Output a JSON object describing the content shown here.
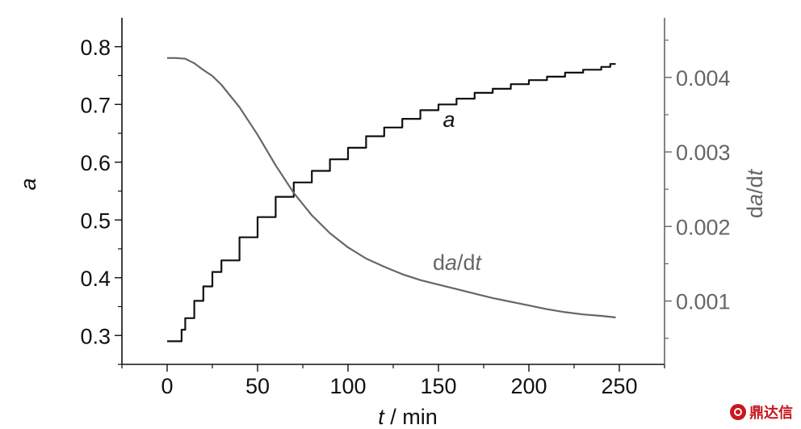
{
  "chart_data": {
    "type": "line",
    "xlabel": {
      "var": "t",
      "unit": " / min"
    },
    "ylabel_left": "a",
    "ylabel_right": {
      "prefix": "d",
      "italic1": "a",
      "mid": "/d",
      "italic2": "t"
    },
    "xlim": [
      -25,
      275
    ],
    "ylim_left": [
      0.25,
      0.85
    ],
    "ylim_right": [
      0.00015,
      0.0048
    ],
    "x_ticks": [
      0,
      50,
      100,
      150,
      200,
      250
    ],
    "x_tick_labels": [
      "0",
      "50",
      "100",
      "150",
      "200",
      "250"
    ],
    "y_left_ticks": [
      0.3,
      0.4,
      0.5,
      0.6,
      0.7,
      0.8
    ],
    "y_left_tick_labels": [
      "0.3",
      "0.4",
      "0.5",
      "0.6",
      "0.7",
      "0.8"
    ],
    "y_right_ticks": [
      0.001,
      0.002,
      0.003,
      0.004
    ],
    "y_right_tick_labels": [
      "0.001",
      "0.002",
      "0.003",
      "0.004"
    ],
    "grid": false,
    "series": [
      {
        "name": "a",
        "axis": "left",
        "color": "#111111",
        "x": [
          0,
          3,
          5,
          8,
          10,
          15,
          20,
          25,
          30,
          40,
          50,
          60,
          70,
          80,
          90,
          100,
          110,
          120,
          130,
          140,
          150,
          160,
          170,
          180,
          190,
          200,
          210,
          220,
          230,
          240,
          245,
          248
        ],
        "y": [
          0.29,
          0.29,
          0.29,
          0.31,
          0.33,
          0.36,
          0.385,
          0.41,
          0.43,
          0.47,
          0.505,
          0.54,
          0.565,
          0.585,
          0.605,
          0.625,
          0.645,
          0.66,
          0.675,
          0.69,
          0.7,
          0.71,
          0.72,
          0.727,
          0.735,
          0.742,
          0.748,
          0.755,
          0.76,
          0.765,
          0.77,
          0.77
        ]
      },
      {
        "name": "da/dt",
        "axis": "right",
        "color": "#666666",
        "x": [
          0,
          5,
          10,
          15,
          20,
          25,
          30,
          40,
          50,
          60,
          70,
          80,
          90,
          100,
          110,
          120,
          130,
          140,
          150,
          160,
          170,
          180,
          190,
          200,
          210,
          220,
          230,
          240,
          248
        ],
        "y": [
          0.00426,
          0.00426,
          0.00425,
          0.00419,
          0.0041,
          0.00402,
          0.0039,
          0.0036,
          0.00323,
          0.00282,
          0.00245,
          0.00215,
          0.00191,
          0.00172,
          0.00157,
          0.00146,
          0.00136,
          0.00128,
          0.00122,
          0.00116,
          0.0011,
          0.00104,
          0.00099,
          0.00094,
          0.00089,
          0.00085,
          0.00082,
          0.0008,
          0.00078
        ]
      }
    ],
    "annotations": {
      "a_label": "a",
      "dadt_label": {
        "prefix": "d",
        "italic1": "a",
        "mid": "/d",
        "italic2": "t"
      }
    }
  },
  "watermark": {
    "text": "鼎达信"
  }
}
